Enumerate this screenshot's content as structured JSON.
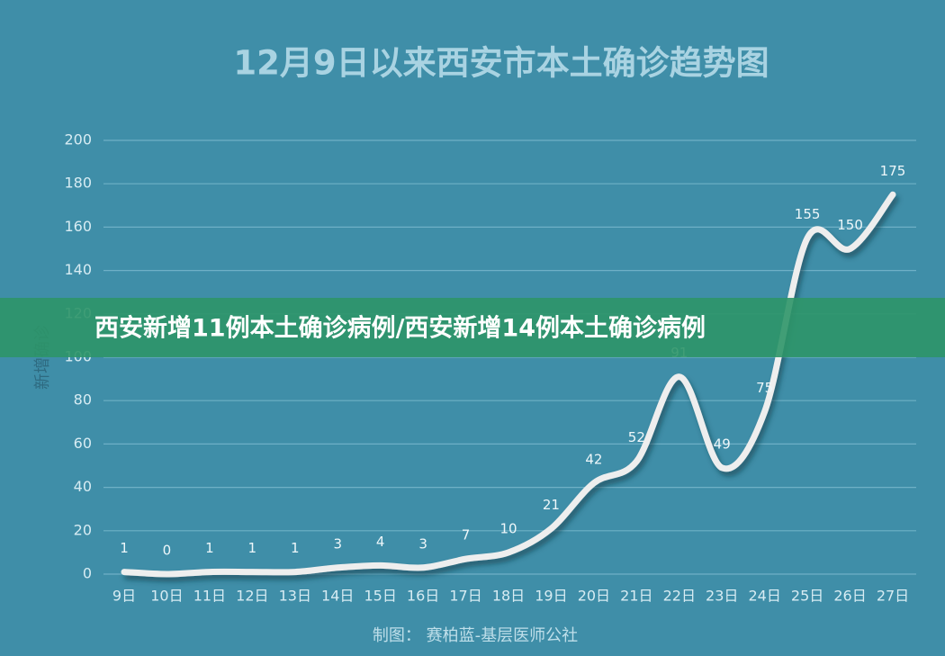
{
  "chart_data": {
    "type": "line",
    "title": "12月9日以来西安市本土确诊趋势图",
    "y_label": "新增确诊",
    "footer": "制图： 赛柏蓝-基层医师公社",
    "categories": [
      "9日",
      "10日",
      "11日",
      "12日",
      "13日",
      "14日",
      "15日",
      "16日",
      "17日",
      "18日",
      "19日",
      "20日",
      "21日",
      "22日",
      "23日",
      "24日",
      "25日",
      "26日",
      "27日"
    ],
    "values": [
      1,
      0,
      1,
      1,
      1,
      3,
      4,
      3,
      7,
      10,
      21,
      42,
      52,
      91,
      49,
      75,
      155,
      150,
      175
    ],
    "color": "#eeeeee",
    "ylim": [
      0,
      200
    ],
    "yticks": [
      0,
      20,
      40,
      60,
      80,
      100,
      120,
      140,
      160,
      180,
      200
    ],
    "grid": true
  },
  "overlay_banner": {
    "text": "西安新增11例本土确诊病例/西安新增14例本土确诊病例"
  }
}
